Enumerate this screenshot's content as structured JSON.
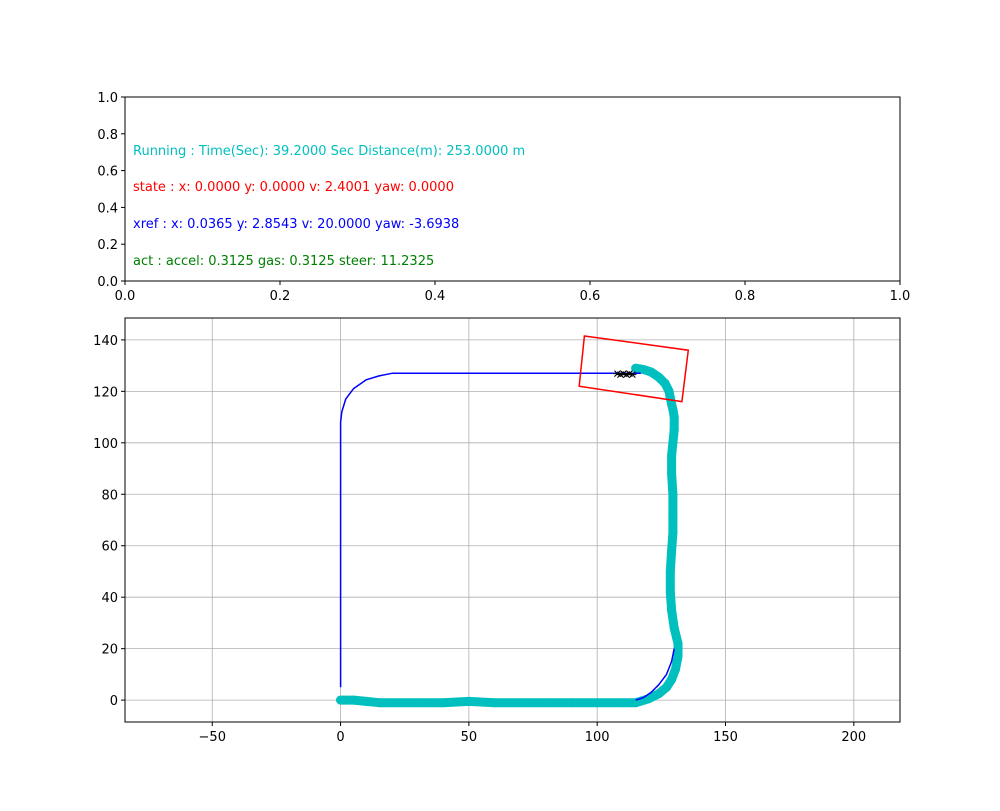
{
  "status_panel": {
    "x_ticks": [
      "0.0",
      "0.2",
      "0.4",
      "0.6",
      "0.8",
      "1.0"
    ],
    "y_ticks": [
      "0.0",
      "0.2",
      "0.4",
      "0.6",
      "0.8",
      "1.0"
    ],
    "lines": [
      {
        "text": "Running : Time(Sec): 39.2000 Sec Distance(m): 253.0000 m",
        "color": "#00bfbf",
        "y": 0.7
      },
      {
        "text": "state :  x: 0.0000 y: 0.0000 v: 2.4001 yaw: 0.0000",
        "color": "#ff0000",
        "y": 0.5
      },
      {
        "text": "xref :  x: 0.0365 y: 2.8543 v: 20.0000 yaw: -3.6938",
        "color": "#0000ff",
        "y": 0.3
      },
      {
        "text": "act :  accel: 0.3125 gas: 0.3125 steer: 11.2325",
        "color": "#008000",
        "y": 0.1
      }
    ]
  },
  "chart_data": {
    "type": "line",
    "xlim": [
      -84,
      218
    ],
    "ylim": [
      -8.5,
      148.5
    ],
    "grid": true,
    "x_ticks": [
      "−50",
      "0",
      "50",
      "100",
      "150",
      "200"
    ],
    "y_ticks": [
      "0",
      "20",
      "40",
      "60",
      "80",
      "100",
      "120",
      "140"
    ],
    "series": [
      {
        "style": "reference-path",
        "color": "#0000ff",
        "x": [
          0,
          0,
          0.5,
          2,
          5,
          10,
          15,
          20,
          60,
          100,
          115,
          116.5,
          117
        ],
        "y": [
          5,
          108,
          112,
          117,
          121,
          124.5,
          126,
          127,
          127,
          127,
          127,
          127,
          127
        ]
      },
      {
        "style": "reference-path",
        "color": "#0000ff",
        "x": [
          115,
          118,
          121,
          124,
          127,
          129,
          130
        ],
        "y": [
          0,
          1,
          3,
          6,
          10,
          15,
          20
        ]
      },
      {
        "style": "vehicle-trajectory",
        "color": "#00bfbf",
        "x": [
          0,
          5,
          10,
          15,
          20,
          30,
          40,
          50,
          60,
          70,
          80,
          90,
          100,
          110,
          115,
          120,
          124,
          127,
          129,
          130.5,
          131.5,
          131.5,
          130,
          129,
          128.5,
          128.5,
          129,
          129.5,
          129.5,
          129.5,
          129,
          129,
          129.5,
          130,
          130,
          129.5,
          129,
          128.5,
          128,
          126.5,
          124,
          121,
          118,
          115
        ],
        "y": [
          0,
          0,
          -0.5,
          -1,
          -1,
          -1,
          -1,
          -0.5,
          -1,
          -1,
          -1,
          -1,
          -1,
          -1,
          -1,
          0.5,
          2.5,
          5,
          8,
          12,
          17,
          22,
          28,
          35,
          42,
          50,
          58,
          65,
          72,
          80,
          88,
          95,
          100,
          105,
          110,
          113,
          115,
          117.5,
          120,
          123,
          125.5,
          127.5,
          128.5,
          129
        ]
      }
    ],
    "annotations": {
      "vehicle_box": {
        "color": "#ff0000",
        "corners": [
          [
            95,
            141.5
          ],
          [
            135.5,
            136
          ],
          [
            133,
            116
          ],
          [
            93,
            122
          ]
        ]
      },
      "prediction_marker": {
        "color": "#000000",
        "x": 111,
        "y": 126.5
      }
    }
  }
}
